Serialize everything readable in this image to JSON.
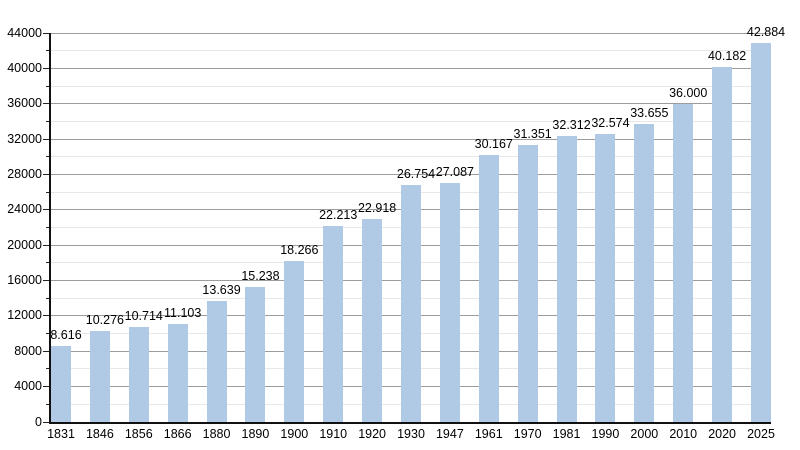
{
  "chart_data": {
    "type": "bar",
    "categories": [
      "1831",
      "1846",
      "1856",
      "1866",
      "1880",
      "1890",
      "1900",
      "1910",
      "1920",
      "1930",
      "1947",
      "1961",
      "1970",
      "1981",
      "1990",
      "2000",
      "2010",
      "2020",
      "2025"
    ],
    "values": [
      8616,
      10276,
      10714,
      11103,
      13639,
      15238,
      18266,
      22213,
      22918,
      26754,
      27087,
      30167,
      31351,
      32312,
      32574,
      33655,
      36000,
      40182,
      42884
    ],
    "bar_labels": [
      "8.616",
      "10.276",
      "10.714",
      "11.103",
      "13.639",
      "15.238",
      "18.266",
      "22.213",
      "22.918",
      "26.754",
      "27.087",
      "30.167",
      "31.351",
      "32.312",
      "32.574",
      "33.655",
      "36.000",
      "40.182",
      "42.884"
    ],
    "xlabel": "",
    "ylabel": "",
    "ylim": [
      0,
      44000
    ],
    "y_major_step": 4000,
    "y_minor_step": 2000,
    "y_tick_values": [
      0,
      4000,
      8000,
      12000,
      16000,
      20000,
      24000,
      28000,
      32000,
      36000,
      40000,
      44000
    ],
    "y_tick_labels": [
      "0",
      "4000",
      "8000",
      "12000",
      "16000",
      "20000",
      "24000",
      "28000",
      "32000",
      "36000",
      "40000",
      "44000"
    ],
    "grid": true,
    "legend": false,
    "colors": {
      "bar_fill": "#b0c9e4",
      "major_grid": "#9c9c9c",
      "minor_grid": "#e8e8e8",
      "axis": "#111111",
      "text": "#000000",
      "background": "#ffffff"
    }
  }
}
